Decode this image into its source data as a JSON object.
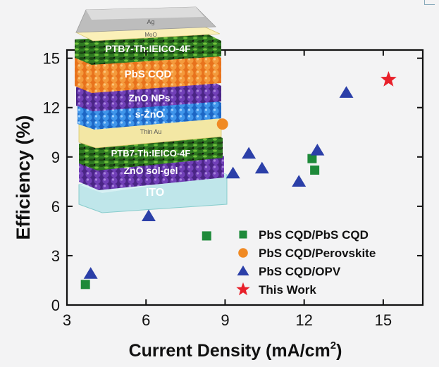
{
  "chart_data": {
    "type": "scatter",
    "xlabel": "Current Density (mA/cm",
    "xlabel_sup": "2",
    "xlabel_end": ")",
    "ylabel": "Efficiency (%)",
    "xlim": [
      3,
      16.5
    ],
    "ylim": [
      0,
      15.5
    ],
    "xticks": [
      "3",
      "6",
      "9",
      "12",
      "15"
    ],
    "yticks": [
      "0",
      "3",
      "6",
      "9",
      "12",
      "15"
    ],
    "legend_position": "bottom-right",
    "series": [
      {
        "name": "PbS CQD/PbS CQD",
        "marker": "square",
        "color": "#1e8a3a",
        "points": [
          [
            3.7,
            1.25
          ],
          [
            8.3,
            4.2
          ],
          [
            12.3,
            8.9
          ],
          [
            12.4,
            8.2
          ]
        ]
      },
      {
        "name": "PbS CQD/Perovskite",
        "marker": "circle",
        "color": "#f08a24",
        "points": [
          [
            8.9,
            11.0
          ]
        ]
      },
      {
        "name": "PbS CQD/OPV",
        "marker": "triangle",
        "color": "#2b3fa8",
        "points": [
          [
            3.9,
            1.9
          ],
          [
            6.1,
            5.4
          ],
          [
            9.3,
            8.0
          ],
          [
            9.9,
            9.2
          ],
          [
            10.4,
            8.3
          ],
          [
            11.8,
            7.5
          ],
          [
            12.5,
            9.4
          ],
          [
            13.6,
            12.9
          ]
        ]
      },
      {
        "name": "This Work",
        "marker": "star",
        "color": "#e8202a",
        "points": [
          [
            15.2,
            13.7
          ]
        ]
      }
    ]
  },
  "inset": {
    "layers": [
      "Ag",
      "MoO",
      "PTB7-Th:IEICO-4F",
      "PbS CQD",
      "ZnO NPs",
      "s-ZnO",
      "Thin Au",
      "PTB7-Th:IEICO-4F",
      "ZnO sol-gel",
      "ITO"
    ]
  }
}
